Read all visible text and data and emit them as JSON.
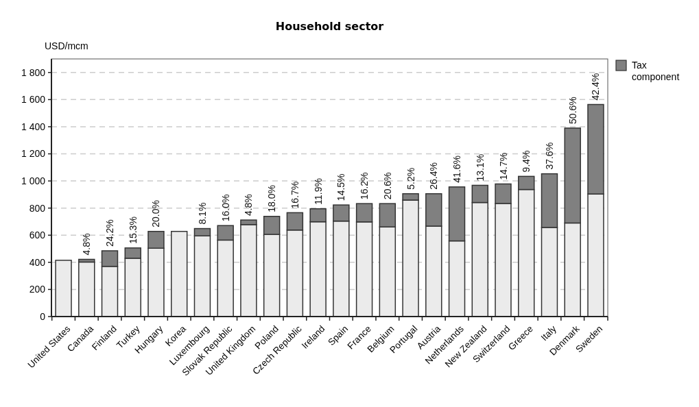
{
  "chart_data": {
    "type": "bar",
    "title": "Household sector",
    "ylabel": "USD/mcm",
    "stacked": true,
    "grid": "y",
    "legend": "top right",
    "categories": [
      "United States",
      "Canada",
      "Finland",
      "Turkey",
      "Hungary",
      "Korea",
      "Luxembourg",
      "Slovak Republic",
      "United Kingdom",
      "Poland",
      "Czech Republic",
      "Ireland",
      "Spain",
      "France",
      "Belgium",
      "Portugal",
      "Austria",
      "Netherlands",
      "New Zealand",
      "Switzerland",
      "Greece",
      "Italy",
      "Denmark",
      "Sweden"
    ],
    "ylim": [
      0,
      1900
    ],
    "yticks": [
      0,
      200,
      400,
      600,
      800,
      {
        "value": 1000,
        "label": "1 000"
      },
      {
        "value": 1200,
        "label": "1 200"
      },
      {
        "value": 1400,
        "label": "1 400"
      },
      {
        "value": 1600,
        "label": "1 600"
      },
      {
        "value": 1800,
        "label": "1 800"
      }
    ],
    "series": [
      {
        "color": "#ebebeb",
        "values": [
          415,
          402,
          370,
          430,
          504,
          628,
          595,
          564,
          678,
          606,
          638,
          699,
          704,
          698,
          661,
          859,
          667,
          558,
          841,
          834,
          937,
          657,
          690,
          904
        ]
      },
      {
        "name": "Tax component",
        "color": "#808080",
        "values": [
          0,
          20,
          115,
          76,
          124,
          0,
          54,
          107,
          34,
          133,
          128,
          96,
          119,
          135,
          172,
          47,
          239,
          398,
          127,
          144,
          97,
          396,
          700,
          660
        ]
      }
    ],
    "annotations": [
      "4.8%",
      "24.2%",
      "15.3%",
      "20.0%",
      "8.1%",
      "16.0%",
      "4.8%",
      "18.0%",
      "16.7%",
      "11.9%",
      "14.5%",
      "16.2%",
      "20.6%",
      "5.2%",
      "26.4%",
      "41.6%",
      "13.1%",
      "14.7%",
      "9.4%",
      "37.6%",
      "50.6%",
      "42.4%"
    ]
  }
}
